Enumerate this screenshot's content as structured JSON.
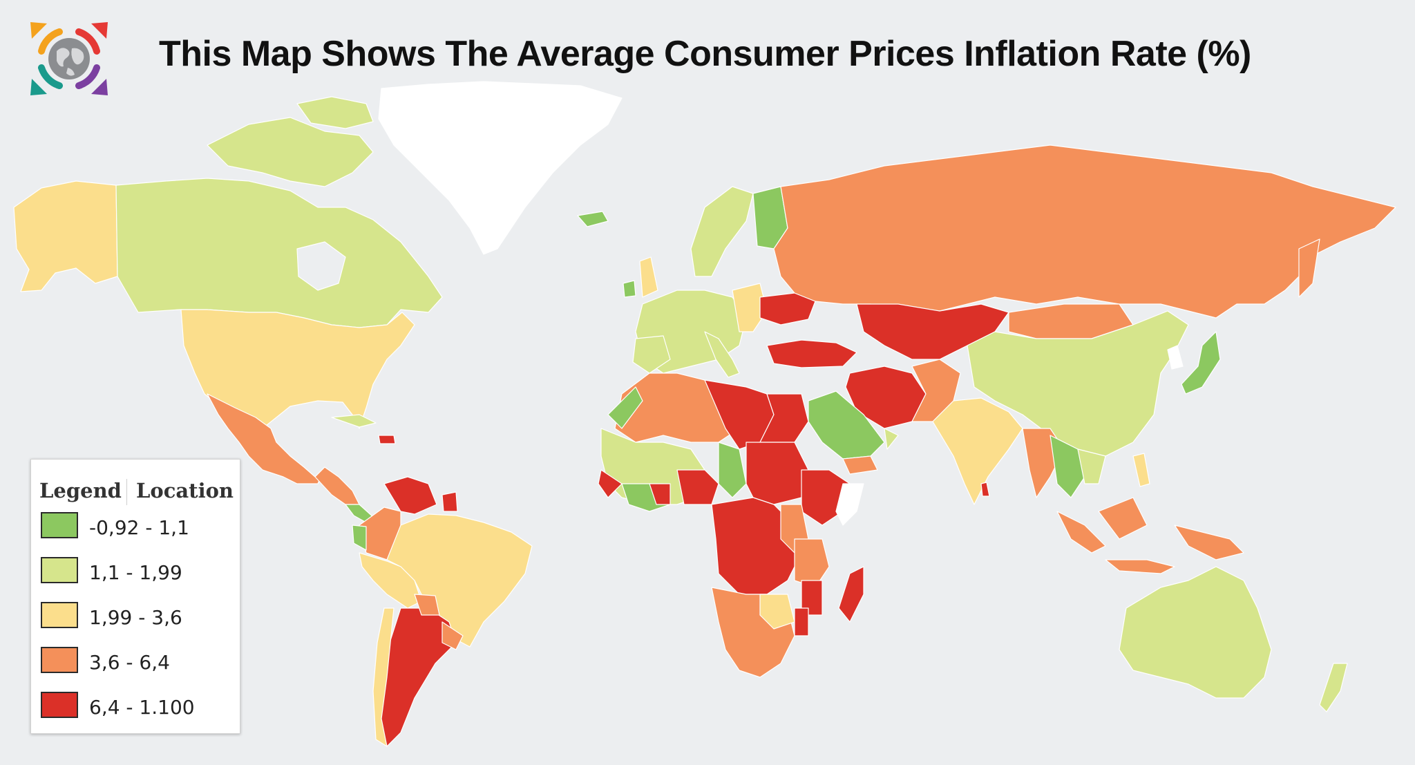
{
  "title": "This Map Shows The Average Consumer Prices Inflation Rate (%)",
  "logo": {
    "icon": "globe-with-arrows-icon",
    "colors": [
      "#f4a21d",
      "#e53935",
      "#7b3fa0",
      "#1a9a8c"
    ]
  },
  "legend": {
    "header_left": "Legend",
    "header_right": "Location",
    "items": [
      {
        "label": "-0,92 - 1,1",
        "color": "#8cc860"
      },
      {
        "label": "1,1 - 1,99",
        "color": "#d6e58c"
      },
      {
        "label": "1,99 - 3,6",
        "color": "#fbde8c"
      },
      {
        "label": "3,6 - 6,4",
        "color": "#f4905a"
      },
      {
        "label": "6,4 - 1.100",
        "color": "#db3028"
      }
    ]
  },
  "colors": {
    "background": "#eceef0",
    "no_data": "#ffffff",
    "border": "#ffffff"
  }
}
